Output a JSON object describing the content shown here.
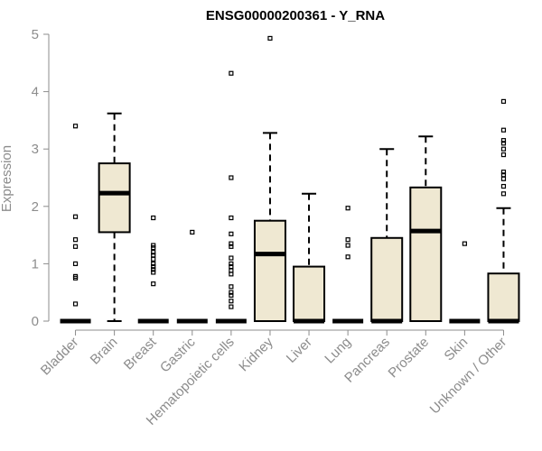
{
  "chart_data": {
    "type": "box",
    "title": "ENSG00000200361 - Y_RNA",
    "ylabel": "Expression",
    "xlabel": "",
    "ylim": [
      0,
      5
    ],
    "yticks": [
      0,
      1,
      2,
      3,
      4,
      5
    ],
    "grid": false,
    "colors": {
      "box_fill": "#efe8d2",
      "box_stroke": "#000000",
      "axis": "#8c8c8c"
    },
    "boxes": [
      {
        "category": "Bladder",
        "min": 0,
        "q1": 0,
        "median": 0,
        "q3": 0,
        "max": 0,
        "outliers": [
          3.4,
          1.82,
          1.42,
          1.3,
          1.0,
          0.78,
          0.75,
          0.3
        ]
      },
      {
        "category": "Brain",
        "min": 0,
        "q1": 1.55,
        "median": 2.23,
        "q3": 2.75,
        "max": 3.62,
        "outliers": []
      },
      {
        "category": "Breast",
        "min": 0,
        "q1": 0,
        "median": 0,
        "q3": 0,
        "max": 0,
        "outliers": [
          1.8,
          1.32,
          1.28,
          1.2,
          1.15,
          1.08,
          1.0,
          0.95,
          0.9,
          0.85,
          0.65
        ]
      },
      {
        "category": "Gastric",
        "min": 0,
        "q1": 0,
        "median": 0,
        "q3": 0,
        "max": 0,
        "outliers": [
          1.55
        ]
      },
      {
        "category": "Hematopoietic cells",
        "min": 0,
        "q1": 0,
        "median": 0,
        "q3": 0,
        "max": 0,
        "outliers": [
          4.32,
          2.5,
          1.8,
          1.52,
          1.35,
          1.3,
          1.1,
          1.0,
          0.95,
          0.88,
          0.82,
          0.6,
          0.5,
          0.45,
          0.35,
          0.25
        ]
      },
      {
        "category": "Kidney",
        "min": 0,
        "q1": 0,
        "median": 1.17,
        "q3": 1.75,
        "max": 3.28,
        "outliers": [
          4.93
        ]
      },
      {
        "category": "Liver",
        "min": 0,
        "q1": 0,
        "median": 0,
        "q3": 0.95,
        "max": 2.22,
        "outliers": []
      },
      {
        "category": "Lung",
        "min": 0,
        "q1": 0,
        "median": 0,
        "q3": 0,
        "max": 0,
        "outliers": [
          1.97,
          1.42,
          1.32,
          1.12
        ]
      },
      {
        "category": "Pancreas",
        "min": 0,
        "q1": 0,
        "median": 0,
        "q3": 1.45,
        "max": 3.0,
        "outliers": []
      },
      {
        "category": "Prostate",
        "min": 0,
        "q1": 0,
        "median": 1.57,
        "q3": 2.33,
        "max": 3.22,
        "outliers": []
      },
      {
        "category": "Skin",
        "min": 0,
        "q1": 0,
        "median": 0,
        "q3": 0,
        "max": 0,
        "outliers": [
          1.35
        ]
      },
      {
        "category": "Unknown / Other",
        "min": 0,
        "q1": 0,
        "median": 0,
        "q3": 0.83,
        "max": 1.97,
        "outliers": [
          3.83,
          3.33,
          3.15,
          3.1,
          3.0,
          2.9,
          2.6,
          2.55,
          2.48,
          2.35,
          2.22
        ]
      }
    ]
  }
}
